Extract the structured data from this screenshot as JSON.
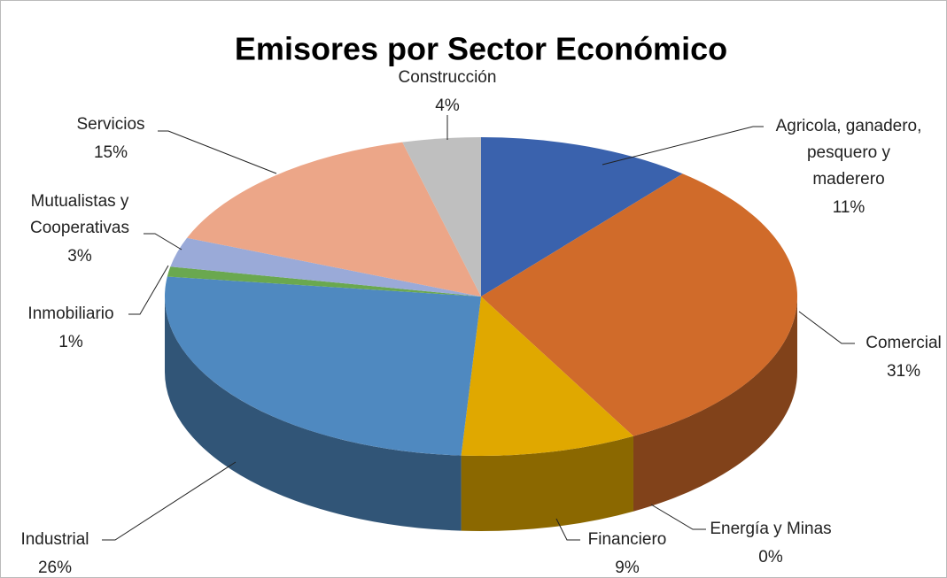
{
  "chart_data": {
    "type": "pie",
    "title": "Emisores por Sector Económico",
    "categories": [
      "Agricola, ganadero, pesquero y maderero",
      "Comercial",
      "Energía y Minas",
      "Financiero",
      "Industrial",
      "Inmobiliario",
      "Mutualistas y Cooperativas",
      "Servicios",
      "Construcción"
    ],
    "values": [
      11,
      31,
      0,
      9,
      26,
      1,
      3,
      15,
      4
    ],
    "value_labels": [
      "11%",
      "31%",
      "0%",
      "9%",
      "26%",
      "1%",
      "3%",
      "15%",
      "4%"
    ],
    "colors": [
      "#3a62ad",
      "#d06b2a",
      "#a5a5a5",
      "#e0a800",
      "#4f89c0",
      "#6aa84f",
      "#9aaad8",
      "#eca688",
      "#bfbfbf"
    ]
  }
}
